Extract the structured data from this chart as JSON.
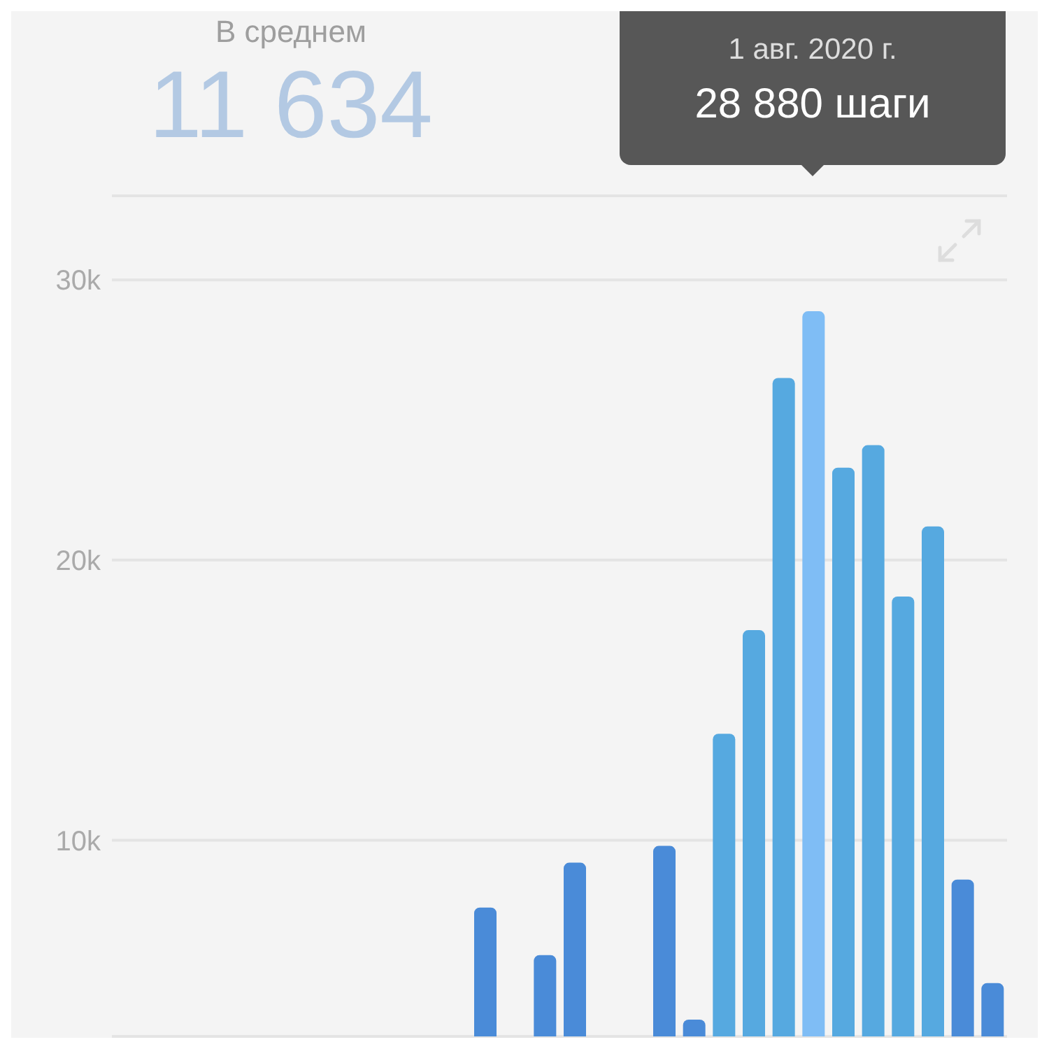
{
  "chart_data": {
    "type": "bar",
    "categories": [
      null,
      null,
      null,
      null,
      null,
      null,
      null,
      null,
      null,
      null,
      null,
      null,
      null,
      null,
      null,
      null,
      null,
      null,
      null,
      null,
      null,
      null,
      null,
      null,
      null,
      null,
      null,
      null,
      null,
      null
    ],
    "values": [
      null,
      null,
      null,
      null,
      null,
      null,
      null,
      null,
      null,
      null,
      null,
      null,
      7600,
      null,
      5900,
      9200,
      null,
      null,
      9800,
      3600,
      13800,
      17500,
      26500,
      28880,
      23300,
      24100,
      18700,
      21200,
      8600,
      4900
    ],
    "colors": [
      "#4a8bd8",
      "#4a8bd8",
      "#4a8bd8",
      "#4a8bd8",
      "#4a8bd8",
      "#4a8bd8",
      "#4a8bd8",
      "#4a8bd8",
      "#4a8bd8",
      "#4a8bd8",
      "#4a8bd8",
      "#4a8bd8",
      "#4a8bd8",
      "#4a8bd8",
      "#4a8bd8",
      "#4a8bd8",
      "#4a8bd8",
      "#4a8bd8",
      "#4a8bd8",
      "#4a8bd8",
      "#56a9e0",
      "#56a9e0",
      "#56a9e0",
      "#7fbdf5",
      "#56a9e0",
      "#56a9e0",
      "#56a9e0",
      "#56a9e0",
      "#4a8bd8",
      "#4a8bd8"
    ],
    "ylim": [
      3000,
      33000
    ],
    "yticks": [
      {
        "value": 10000,
        "label": "10k"
      },
      {
        "value": 20000,
        "label": "20k"
      },
      {
        "value": 30000,
        "label": "30k"
      }
    ],
    "grid": "y",
    "tick_labels": "y",
    "annotations": [
      "В среднем",
      "11 634",
      "1 авг. 2020 г.",
      "28 880 шаги"
    ]
  }
}
